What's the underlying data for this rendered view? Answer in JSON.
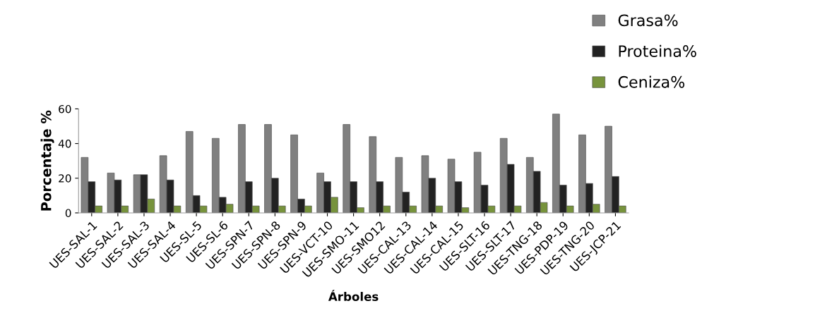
{
  "chart_data": {
    "type": "bar",
    "xlabel": "Árboles",
    "ylabel": "Porcentaje %",
    "categories": [
      "UES-SAL-1",
      "UES-SAL-2",
      "UES-SAL-3",
      "UES-SAL-4",
      "UES-SL-5",
      "UES-SL-6",
      "UES-SPN-7",
      "UES-SPN-8",
      "UES-SPN-9",
      "UES-VCT-10",
      "UES-SMO-11",
      "UES-SMO12",
      "UES-CAL-13",
      "UES-CAL-14",
      "UES-CAL-15",
      "UES-SLT-16",
      "UES-SLT-17",
      "UES-TNG-18",
      "UES-PDP-19",
      "UES-TNG-20",
      "UES-JCP-21"
    ],
    "series": [
      {
        "name": "Grasa%",
        "color": "#808080",
        "values": [
          32,
          23,
          22,
          33,
          47,
          43,
          51,
          51,
          45,
          23,
          51,
          44,
          32,
          33,
          31,
          35,
          43,
          32,
          57,
          45,
          50
        ]
      },
      {
        "name": "Proteina%",
        "color": "#222222",
        "values": [
          18,
          19,
          22,
          19,
          10,
          9,
          18,
          20,
          8,
          18,
          18,
          18,
          12,
          20,
          18,
          16,
          28,
          24,
          16,
          17,
          21
        ]
      },
      {
        "name": "Ceniza%",
        "color": "#77933c",
        "values": [
          4,
          4,
          8,
          4,
          4,
          5,
          4,
          4,
          4,
          9,
          3,
          4,
          4,
          4,
          3,
          4,
          4,
          6,
          4,
          5,
          4
        ]
      }
    ],
    "ylim": [
      0,
      60
    ],
    "yticks": [
      0,
      20,
      40,
      60
    ],
    "grid": false,
    "legend": "top right"
  }
}
